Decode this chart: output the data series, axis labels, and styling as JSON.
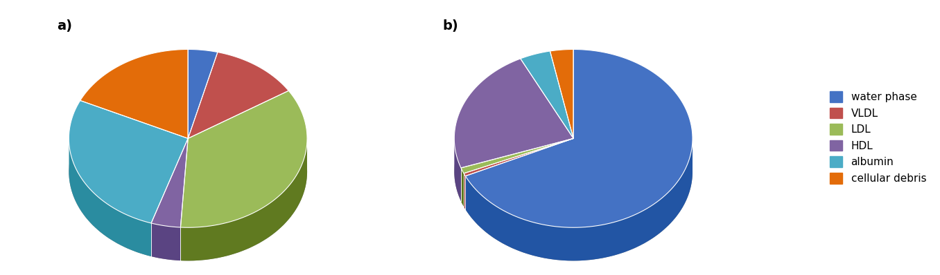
{
  "chart_a": {
    "label": "a)",
    "values": [
      4,
      12,
      35,
      4,
      27,
      18
    ],
    "startangle": 90
  },
  "chart_b": {
    "label": "b)",
    "values": [
      65,
      0.5,
      1,
      22,
      4,
      3
    ],
    "startangle": 90
  },
  "categories": [
    "water phase",
    "VLDL",
    "LDL",
    "HDL",
    "albumin",
    "cellular debris"
  ],
  "colors": [
    "#4472C4",
    "#C0504D",
    "#9BBB59",
    "#8064A2",
    "#4BACC6",
    "#E36C09"
  ],
  "dark_colors": [
    "#2255A4",
    "#A03030",
    "#607A20",
    "#5A4482",
    "#2A8CA0",
    "#C05000"
  ],
  "background": "#FFFFFF",
  "legend_fontsize": 11,
  "label_fontsize": 14
}
